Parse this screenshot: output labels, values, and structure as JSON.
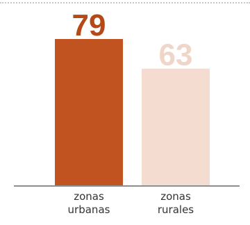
{
  "chart_data": {
    "type": "bar",
    "categories": [
      [
        "zonas",
        "urbanas"
      ],
      [
        "zonas",
        "rurales"
      ]
    ],
    "values": [
      79,
      63
    ],
    "bar_colors": [
      "#c0531f",
      "#f4ddd0"
    ],
    "label_colors": [
      "#b54a18",
      "#f0d6c8"
    ],
    "baseline_color": "#8e8e8e",
    "divider_color": "#c9c9c9",
    "ylim": [
      0,
      79
    ],
    "grid": false,
    "legend": "none"
  }
}
